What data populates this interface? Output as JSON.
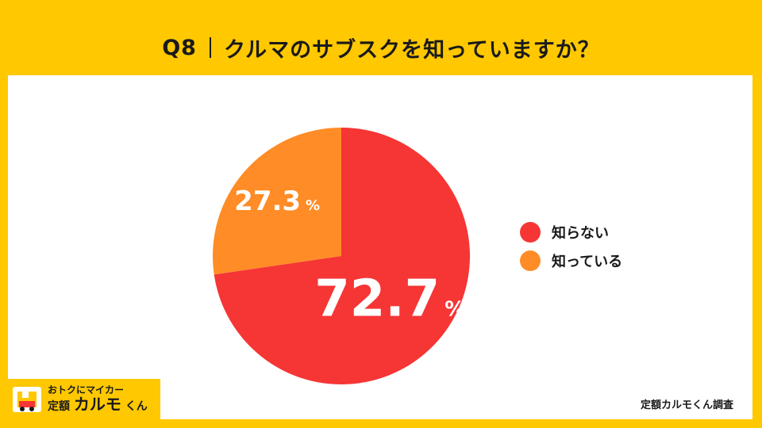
{
  "title": {
    "question": "Q8",
    "text": "クルマのサブスクを知っていますか？"
  },
  "chart_data": {
    "type": "pie",
    "categories": [
      "知らない",
      "知っている"
    ],
    "values": [
      72.7,
      27.3
    ],
    "value_labels": [
      "72.7",
      "27.3"
    ],
    "unit": "%",
    "colors": [
      "#F63535",
      "#FF8C26"
    ],
    "start_angle_deg": 0,
    "direction": "clockwise",
    "legend_position": "right"
  },
  "credit": "定額カルモくん調査",
  "logo": {
    "tagline": "おトクにマイカー",
    "name_prefix": "定額",
    "name_main": "カルモ",
    "name_suffix": "くん"
  }
}
